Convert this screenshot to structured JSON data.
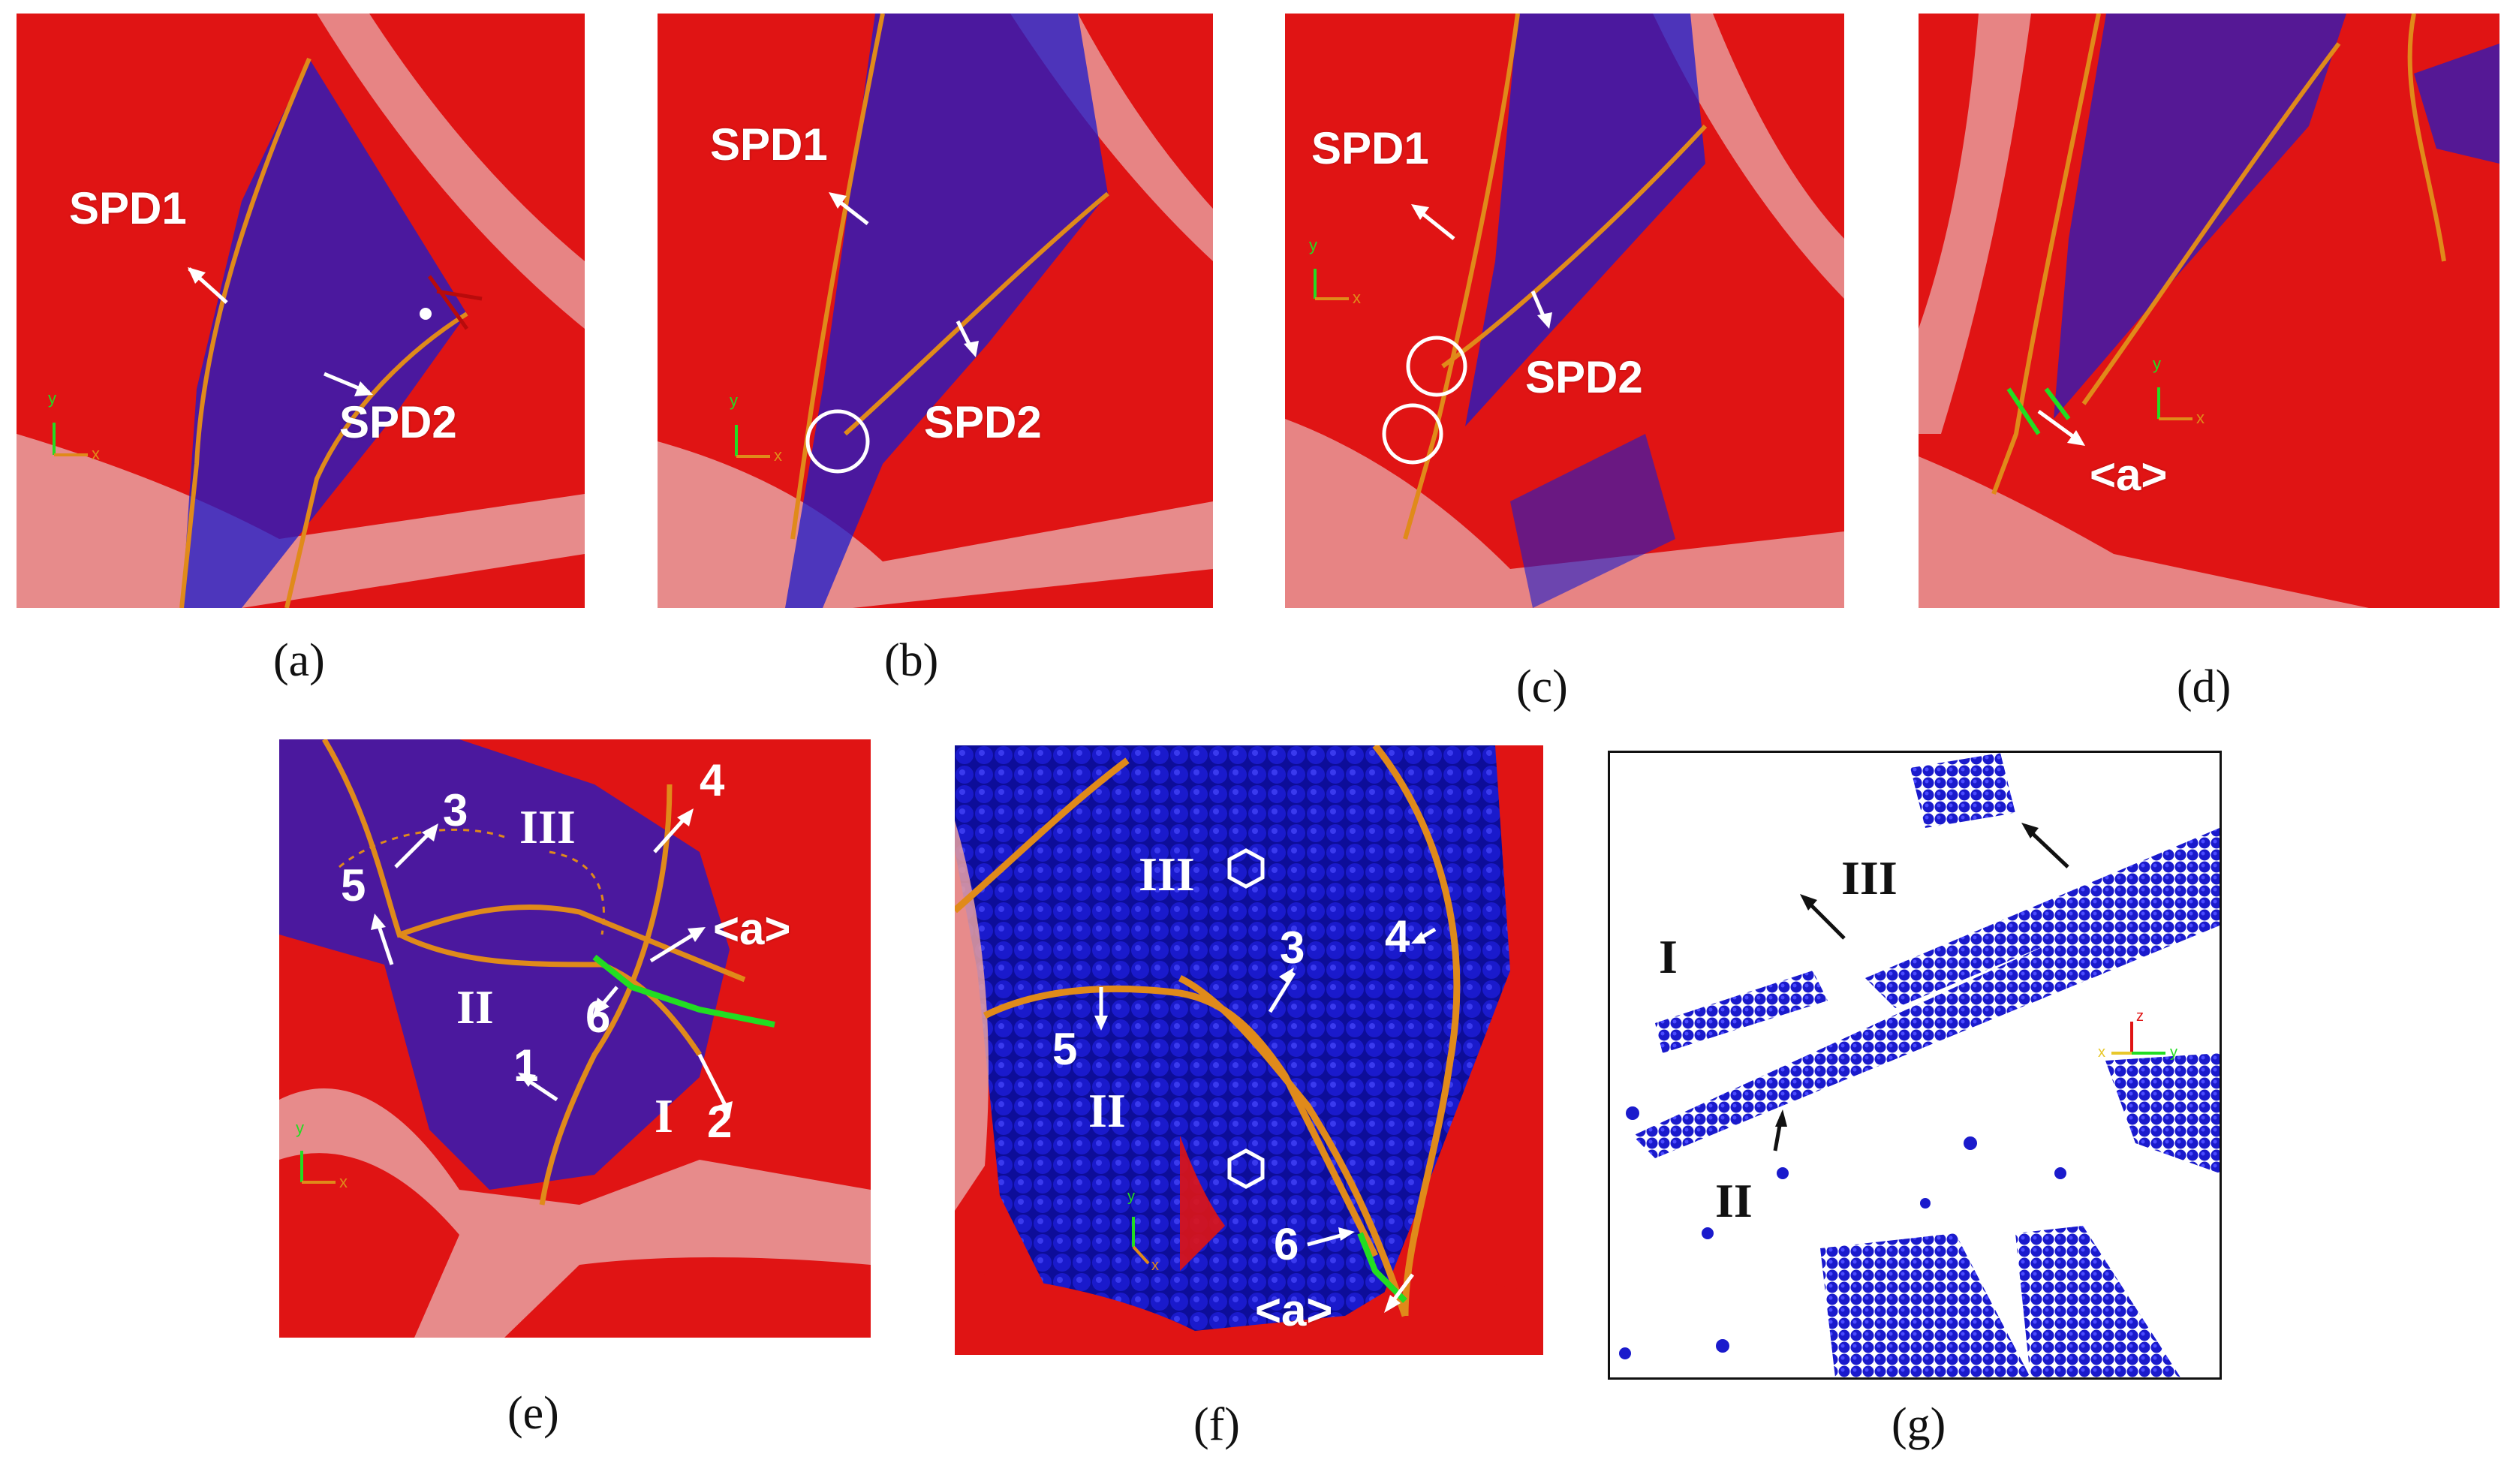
{
  "figure": {
    "captions": [
      "(a)",
      "(b)",
      "(c)",
      "(d)",
      "(e)",
      "(f)",
      "(g)"
    ]
  },
  "panel_a": {
    "labels": {
      "spd1": "SPD1",
      "spd2": "SPD2"
    },
    "axes": {
      "y": "y",
      "x": "x"
    }
  },
  "panel_b": {
    "labels": {
      "spd1": "SPD1",
      "spd2": "SPD2"
    },
    "axes": {
      "y": "y",
      "x": "x"
    }
  },
  "panel_c": {
    "labels": {
      "spd1": "SPD1",
      "spd2": "SPD2"
    },
    "axes": {
      "y": "y",
      "x": "x"
    }
  },
  "panel_d": {
    "labels": {
      "a": "<a>"
    },
    "axes": {
      "y": "y",
      "x": "x"
    }
  },
  "panel_e": {
    "regions": {
      "i": "I",
      "ii": "II",
      "iii": "III"
    },
    "numbers": [
      "1",
      "2",
      "3",
      "4",
      "5",
      "6"
    ],
    "labels": {
      "a": "<a>"
    },
    "axes": {
      "y": "y",
      "x": "x"
    }
  },
  "panel_f": {
    "regions": {
      "ii": "II",
      "iii": "III"
    },
    "numbers": {
      "three": "3",
      "four": "4",
      "five": "5",
      "six": "6"
    },
    "labels": {
      "a": "<a>"
    },
    "axes": {
      "y": "y",
      "x": "x"
    }
  },
  "panel_g": {
    "regions": {
      "i": "I",
      "ii": "II",
      "iii": "III"
    },
    "axes": {
      "z": "z",
      "x": "x",
      "y": "y"
    }
  },
  "colors": {
    "surface_red": "#e01414",
    "dark_red": "#b80b0b",
    "atom_blue": "#1a1acc",
    "dislocation_orange": "#e08a1a",
    "dislocation_green": "#22dd22",
    "grain_boundary_pink": "#e8a0a0"
  }
}
